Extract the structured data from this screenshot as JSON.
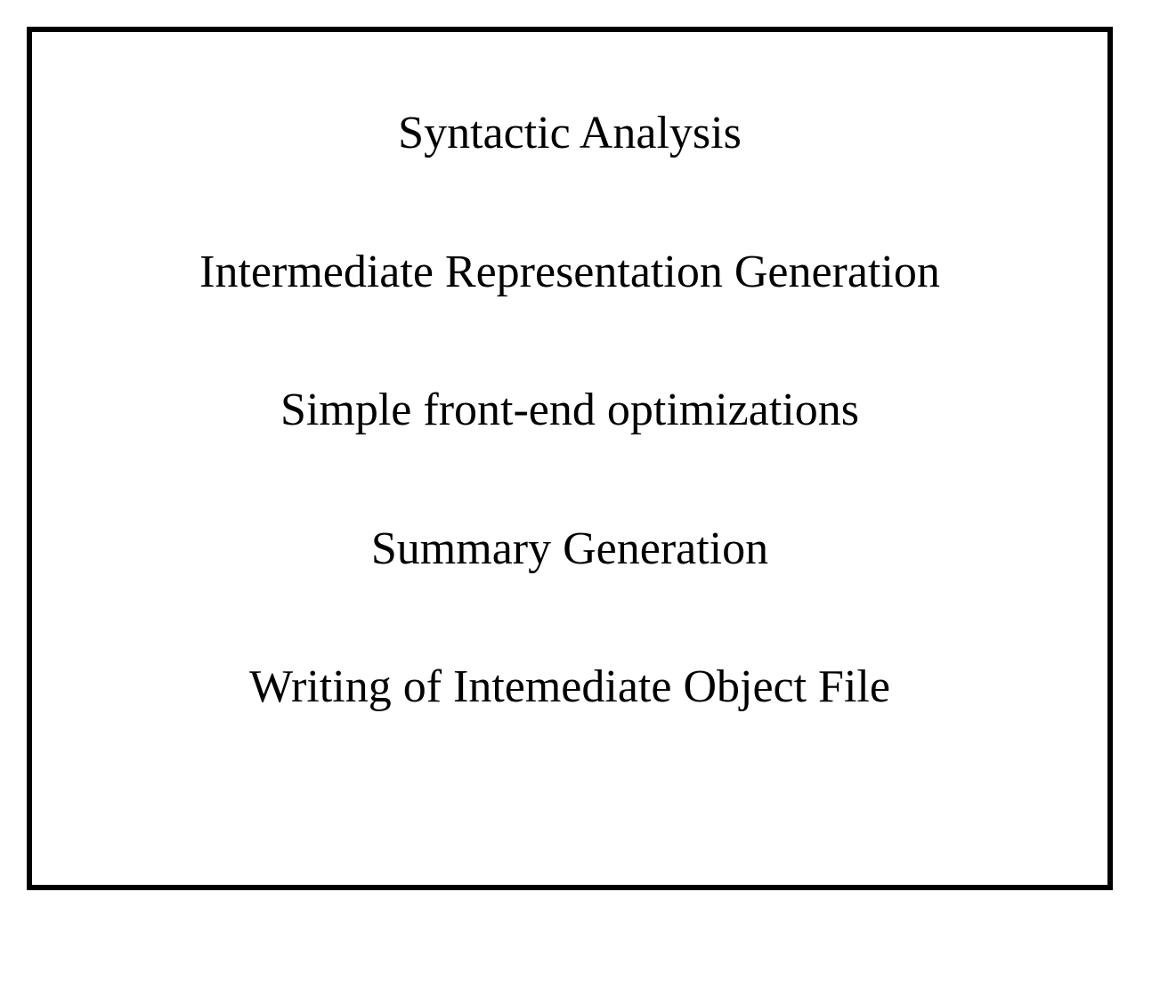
{
  "diagram": {
    "type": "infographic",
    "box": {
      "border_color": "#000000",
      "border_width": 6,
      "background_color": "#ffffff"
    },
    "typography": {
      "font_family": "Times New Roman",
      "font_size_pt": 39,
      "font_weight": "normal",
      "text_color": "#000000"
    },
    "steps": [
      {
        "label": "Syntactic Analysis"
      },
      {
        "label": "Intermediate Representation Generation"
      },
      {
        "label": "Simple front-end optimizations"
      },
      {
        "label": "Summary Generation"
      },
      {
        "label": "Writing of Intemediate Object File"
      }
    ]
  }
}
